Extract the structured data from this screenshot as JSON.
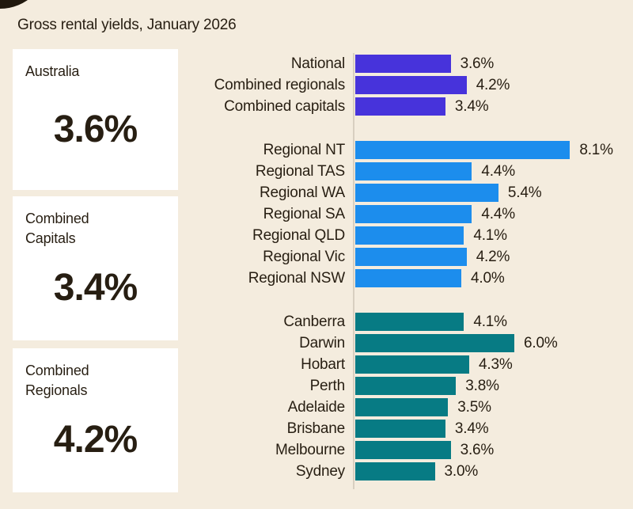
{
  "page": {
    "title": "Gross rental yields, January 2026",
    "background_color": "#f4ecde",
    "text_color": "#271e12",
    "corner_blob_color": "#20180d"
  },
  "summary_cards": [
    {
      "label": "Australia",
      "value": "3.6%"
    },
    {
      "label": "Combined Capitals",
      "value": "3.4%"
    },
    {
      "label": "Combined Regionals",
      "value": "4.2%"
    }
  ],
  "chart_data": {
    "type": "bar",
    "orientation": "horizontal",
    "title": "Gross rental yields, January 2026",
    "unit": "%",
    "xlim": [
      0,
      8.5
    ],
    "value_label_format": "one-decimal-percent",
    "axis_line_color": "#d8cfc0",
    "groups": [
      {
        "id": "national-aggregates",
        "color": "#4733db",
        "categories": [
          "National",
          "Combined regionals",
          "Combined capitals"
        ],
        "values": [
          3.6,
          4.2,
          3.4
        ]
      },
      {
        "id": "regional-markets",
        "color": "#1c8ded",
        "categories": [
          "Regional NT",
          "Regional TAS",
          "Regional WA",
          "Regional SA",
          "Regional QLD",
          "Regional Vic",
          "Regional NSW"
        ],
        "values": [
          8.1,
          4.4,
          5.4,
          4.4,
          4.1,
          4.2,
          4.0
        ]
      },
      {
        "id": "capital-cities",
        "color": "#077b84",
        "categories": [
          "Canberra",
          "Darwin",
          "Hobart",
          "Perth",
          "Adelaide",
          "Brisbane",
          "Melbourne",
          "Sydney"
        ],
        "values": [
          4.1,
          6.0,
          4.3,
          3.8,
          3.5,
          3.4,
          3.6,
          3.0
        ]
      }
    ]
  }
}
